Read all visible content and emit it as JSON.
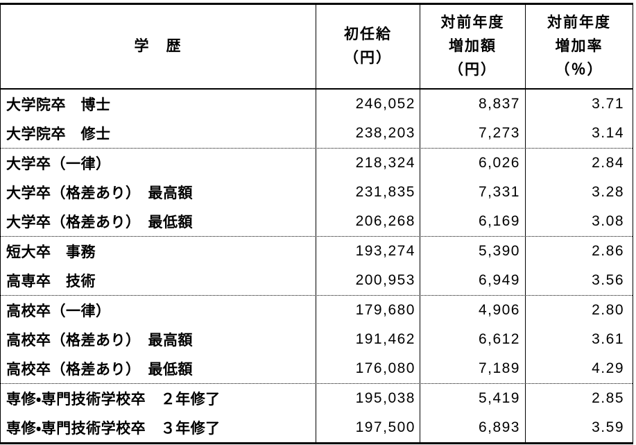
{
  "header": {
    "education": "学　歴",
    "salary_lines": [
      "初任給",
      "（円）"
    ],
    "increase_lines": [
      "対前年度",
      "増加額",
      "（円）"
    ],
    "rate_lines": [
      "対前年度",
      "増加率",
      "（％）"
    ]
  },
  "groups": [
    {
      "rows": [
        {
          "label": "大学院卒　博士",
          "salary": "246,052",
          "increase": "8,837",
          "rate": "3.71"
        },
        {
          "label": "大学院卒　修士",
          "salary": "238,203",
          "increase": "7,273",
          "rate": "3.14"
        }
      ]
    },
    {
      "rows": [
        {
          "label": "大学卒（一律）",
          "salary": "218,324",
          "increase": "6,026",
          "rate": "2.84"
        },
        {
          "label": "大学卒（格差あり）　最高額",
          "salary": "231,835",
          "increase": "7,331",
          "rate": "3.28"
        },
        {
          "label": "大学卒（格差あり）　最低額",
          "salary": "206,268",
          "increase": "6,169",
          "rate": "3.08"
        }
      ]
    },
    {
      "rows": [
        {
          "label": "短大卒　事務",
          "salary": "193,274",
          "increase": "5,390",
          "rate": "2.86"
        },
        {
          "label": "高専卒　技術",
          "salary": "200,953",
          "increase": "6,949",
          "rate": "3.56"
        }
      ]
    },
    {
      "rows": [
        {
          "label": "高校卒（一律）",
          "salary": "179,680",
          "increase": "4,906",
          "rate": "2.80"
        },
        {
          "label": "高校卒（格差あり）　最高額",
          "salary": "191,462",
          "increase": "6,612",
          "rate": "3.61"
        },
        {
          "label": "高校卒（格差あり）　最低額",
          "salary": "176,080",
          "increase": "7,189",
          "rate": "4.29"
        }
      ]
    },
    {
      "rows": [
        {
          "label": "専修・専門技術学校卒　２年修了",
          "salary": "195,038",
          "increase": "5,419",
          "rate": "2.85"
        },
        {
          "label": "専修・専門技術学校卒　３年修了",
          "salary": "197,500",
          "increase": "6,893",
          "rate": "3.59"
        }
      ]
    }
  ],
  "colors": {
    "border": "#000000",
    "text": "#000000",
    "background": "#ffffff"
  },
  "chart_data": {
    "type": "table",
    "columns": [
      "学歴",
      "初任給（円）",
      "対前年度増加額（円）",
      "対前年度増加率（％）"
    ],
    "rows": [
      [
        "大学院卒　博士",
        246052,
        8837,
        3.71
      ],
      [
        "大学院卒　修士",
        238203,
        7273,
        3.14
      ],
      [
        "大学卒（一律）",
        218324,
        6026,
        2.84
      ],
      [
        "大学卒（格差あり）　最高額",
        231835,
        7331,
        3.28
      ],
      [
        "大学卒（格差あり）　最低額",
        206268,
        6169,
        3.08
      ],
      [
        "短大卒　事務",
        193274,
        5390,
        2.86
      ],
      [
        "高専卒　技術",
        200953,
        6949,
        3.56
      ],
      [
        "高校卒（一律）",
        179680,
        4906,
        2.8
      ],
      [
        "高校卒（格差あり）　最高額",
        191462,
        6612,
        3.61
      ],
      [
        "高校卒（格差あり）　最低額",
        176080,
        7189,
        4.29
      ],
      [
        "専修・専門技術学校卒　２年修了",
        195038,
        5419,
        2.85
      ],
      [
        "専修・専門技術学校卒　３年修了",
        197500,
        6893,
        3.59
      ]
    ]
  }
}
